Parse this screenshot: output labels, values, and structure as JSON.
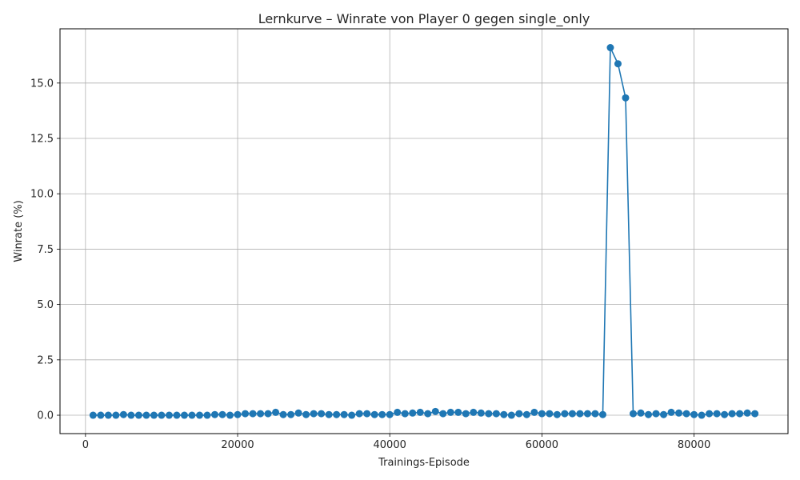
{
  "chart_data": {
    "type": "line",
    "title": "Lernkurve – Winrate von Player 0 gegen single_only",
    "xlabel": "Trainings-Episode",
    "ylabel": "Winrate (%)",
    "xlim": [
      -3350,
      92350
    ],
    "ylim": [
      -0.83,
      17.45
    ],
    "x_ticks": [
      0,
      20000,
      40000,
      60000,
      80000
    ],
    "x_tick_labels": [
      "0",
      "20000",
      "40000",
      "60000",
      "80000"
    ],
    "y_ticks": [
      0.0,
      2.5,
      5.0,
      7.5,
      10.0,
      12.5,
      15.0
    ],
    "y_tick_labels": [
      "0.0",
      "2.5",
      "5.0",
      "7.5",
      "10.0",
      "12.5",
      "15.0"
    ],
    "grid": true,
    "legend": "none",
    "series": [
      {
        "color": "#1f77b4",
        "marker": "circle",
        "x": [
          1000,
          2000,
          3000,
          4000,
          5000,
          6000,
          7000,
          8000,
          9000,
          10000,
          11000,
          12000,
          13000,
          14000,
          15000,
          16000,
          17000,
          18000,
          19000,
          20000,
          21000,
          22000,
          23000,
          24000,
          25000,
          26000,
          27000,
          28000,
          29000,
          30000,
          31000,
          32000,
          33000,
          34000,
          35000,
          36000,
          37000,
          38000,
          39000,
          40000,
          41000,
          42000,
          43000,
          44000,
          45000,
          46000,
          47000,
          48000,
          49000,
          50000,
          51000,
          52000,
          53000,
          54000,
          55000,
          56000,
          57000,
          58000,
          59000,
          60000,
          61000,
          62000,
          63000,
          64000,
          65000,
          66000,
          67000,
          68000,
          69000,
          70000,
          71000,
          72000,
          73000,
          74000,
          75000,
          76000,
          77000,
          78000,
          79000,
          80000,
          81000,
          82000,
          83000,
          84000,
          85000,
          86000,
          87000,
          88000
        ],
        "y": [
          0.0,
          0.0,
          0.0,
          0.0,
          0.03,
          0.0,
          0.0,
          0.0,
          0.0,
          0.0,
          0.0,
          0.0,
          0.0,
          0.0,
          0.0,
          0.0,
          0.03,
          0.03,
          0.0,
          0.03,
          0.07,
          0.07,
          0.07,
          0.07,
          0.13,
          0.03,
          0.03,
          0.1,
          0.03,
          0.07,
          0.07,
          0.03,
          0.03,
          0.03,
          0.0,
          0.07,
          0.07,
          0.03,
          0.03,
          0.03,
          0.13,
          0.07,
          0.1,
          0.13,
          0.07,
          0.17,
          0.07,
          0.13,
          0.13,
          0.07,
          0.13,
          0.1,
          0.07,
          0.07,
          0.03,
          0.0,
          0.07,
          0.03,
          0.13,
          0.07,
          0.07,
          0.03,
          0.07,
          0.07,
          0.07,
          0.07,
          0.07,
          0.03,
          16.6,
          15.87,
          14.33,
          0.07,
          0.1,
          0.03,
          0.07,
          0.03,
          0.13,
          0.1,
          0.07,
          0.03,
          0.0,
          0.07,
          0.07,
          0.03,
          0.07,
          0.07,
          0.1,
          0.07
        ]
      }
    ]
  }
}
